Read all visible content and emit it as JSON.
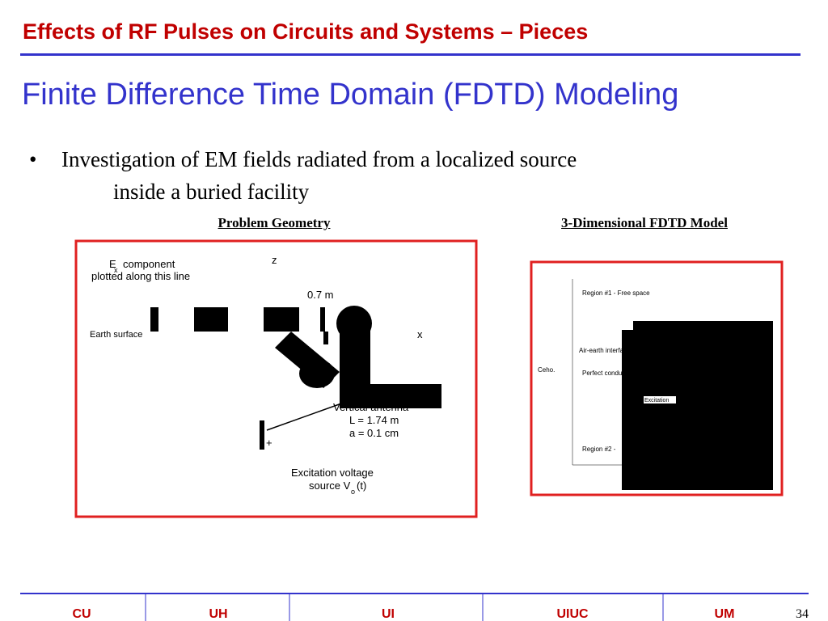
{
  "header": {
    "title": "Effects of RF Pulses on Circuits and Systems – Pieces"
  },
  "subtitle": "Finite Difference Time Domain (FDTD) Modeling",
  "bullet": {
    "symbol": "•",
    "lines": [
      "Investigation of EM fields radiated from a localized source",
      "inside a buried facility"
    ]
  },
  "figures": [
    {
      "caption": "Problem Geometry",
      "labels": [
        "E",
        "x",
        "component",
        "plotted along this line",
        "z",
        "0.7 m",
        "Earth surface",
        "x",
        "Vertical antenna",
        "L = 1.74 m",
        "a = 0.1 cm",
        "+",
        "Excitation voltage",
        "source V",
        "o",
        "(t)"
      ]
    },
    {
      "caption": "3-Dimensional FDTD Model",
      "labels": [
        "Region #1 - Free space",
        "Air-earth interface",
        "Perfect conductor",
        "Region #2 -",
        "Ceho.",
        "Excitation"
      ]
    }
  ],
  "footer": {
    "cells": [
      "CU",
      "UH",
      "UI",
      "UIUC",
      "UM"
    ],
    "page": "34"
  }
}
